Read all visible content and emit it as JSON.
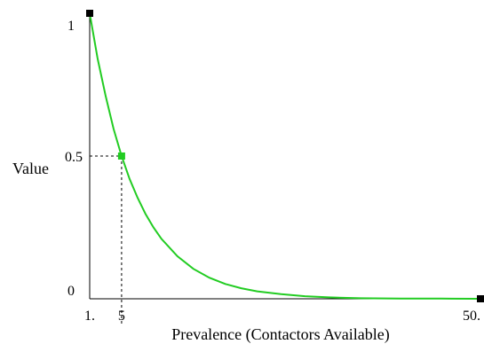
{
  "chart_data": {
    "type": "line",
    "title": "",
    "xlabel": "Prevalence (Contactors Available)",
    "ylabel": "Value",
    "xlim": [
      1,
      50
    ],
    "ylim": [
      0,
      1
    ],
    "x_tick_labels": [
      {
        "value": 1,
        "label": "1."
      },
      {
        "value": 5,
        "label": "5"
      },
      {
        "value": 50,
        "label": "50."
      }
    ],
    "y_tick_labels": [
      {
        "value": 0,
        "label": "0"
      },
      {
        "value": 0.5,
        "label": "0.5"
      },
      {
        "value": 1,
        "label": "1"
      }
    ],
    "grid": false,
    "series": [
      {
        "color": "#22cc22",
        "x": [
          1,
          2,
          3,
          4,
          5,
          6,
          7,
          8,
          9,
          10,
          12,
          14,
          16,
          18,
          20,
          22,
          25,
          28,
          31,
          35,
          40,
          45,
          50
        ],
        "y": [
          1.0,
          0.84,
          0.71,
          0.595,
          0.5,
          0.42,
          0.354,
          0.297,
          0.25,
          0.21,
          0.149,
          0.105,
          0.074,
          0.052,
          0.037,
          0.026,
          0.016,
          0.009,
          0.005,
          0.002,
          0.001,
          0.0005,
          0.0
        ]
      }
    ],
    "highlight_point": {
      "x": 5,
      "y": 0.5,
      "color": "#22cc22"
    },
    "endpoint_markers": [
      {
        "x": 1,
        "y": 1,
        "color": "#000000"
      },
      {
        "x": 50,
        "y": 0,
        "color": "#000000"
      }
    ]
  }
}
